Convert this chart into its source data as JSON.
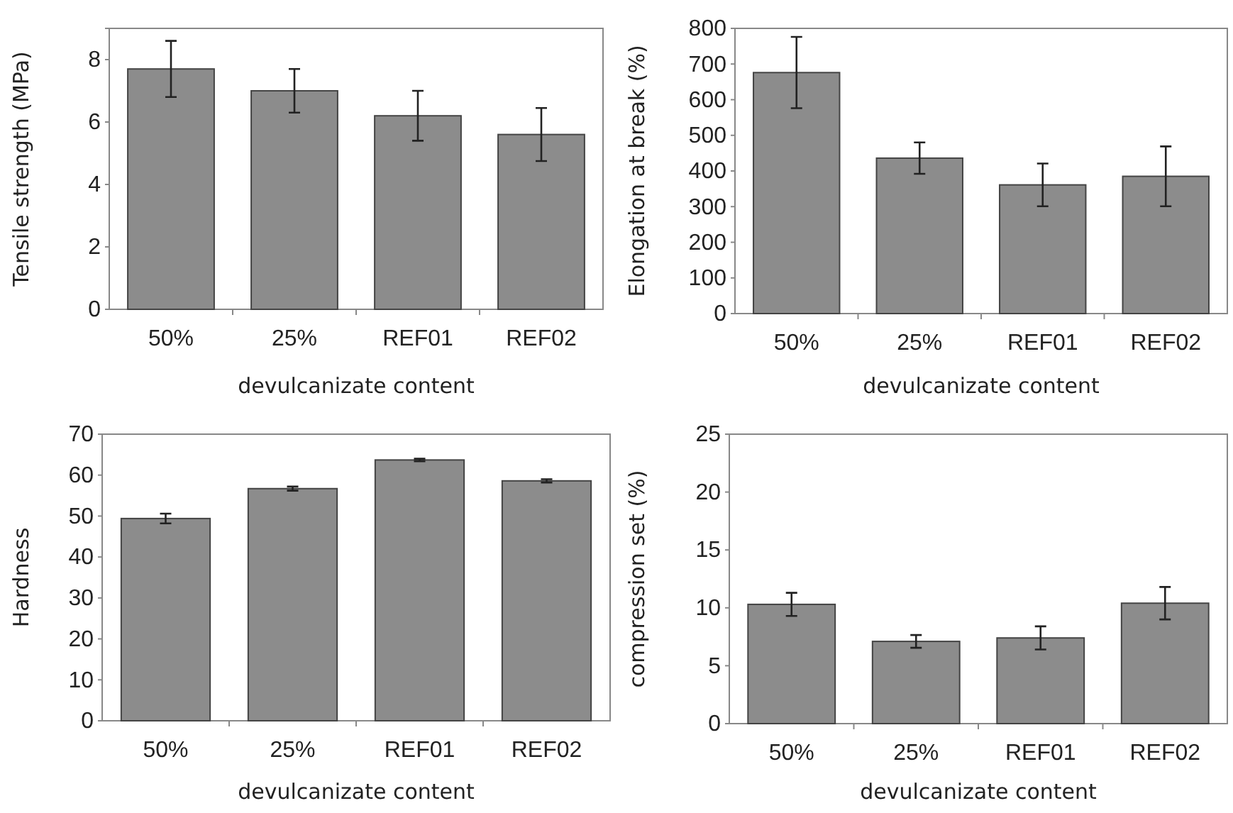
{
  "chart_data": [
    {
      "type": "bar",
      "xlabel": "devulcanizate content",
      "ylabel": "Tensile strength (MPa)",
      "categories": [
        "50%",
        "25%",
        "REF01",
        "REF02"
      ],
      "color": "#8c8c8c",
      "values": [
        7.7,
        7.0,
        6.2,
        5.6
      ],
      "errors": [
        0.9,
        0.7,
        0.8,
        0.85
      ],
      "ylim": [
        0,
        9
      ],
      "yticks": [
        0,
        2,
        4,
        6,
        8
      ],
      "grid": false
    },
    {
      "type": "bar",
      "xlabel": "devulcanizate content",
      "ylabel": "Elongation at break (%)",
      "categories": [
        "50%",
        "25%",
        "REF01",
        "REF02"
      ],
      "color": "#8c8c8c",
      "values": [
        676,
        436,
        361,
        385
      ],
      "errors": [
        100,
        44,
        60,
        84
      ],
      "ylim": [
        0,
        800
      ],
      "yticks": [
        0,
        100,
        200,
        300,
        400,
        500,
        600,
        700,
        800
      ],
      "grid": false
    },
    {
      "type": "bar",
      "xlabel": "devulcanizate content",
      "ylabel": "Hardness",
      "categories": [
        "50%",
        "25%",
        "REF01",
        "REF02"
      ],
      "color": "#8c8c8c",
      "values": [
        49.4,
        56.7,
        63.7,
        58.6
      ],
      "errors": [
        1.2,
        0.5,
        0.3,
        0.4
      ],
      "ylim": [
        0,
        70
      ],
      "yticks": [
        0,
        10,
        20,
        30,
        40,
        50,
        60,
        70
      ],
      "grid": false
    },
    {
      "type": "bar",
      "xlabel": "devulcanizate content",
      "ylabel": "compression set (%)",
      "categories": [
        "50%",
        "25%",
        "REF01",
        "REF02"
      ],
      "color": "#8c8c8c",
      "values": [
        10.3,
        7.1,
        7.4,
        10.4
      ],
      "errors": [
        1.0,
        0.55,
        1.0,
        1.4
      ],
      "ylim": [
        0,
        25
      ],
      "yticks": [
        0,
        5,
        10,
        15,
        20,
        25
      ],
      "grid": false
    }
  ]
}
